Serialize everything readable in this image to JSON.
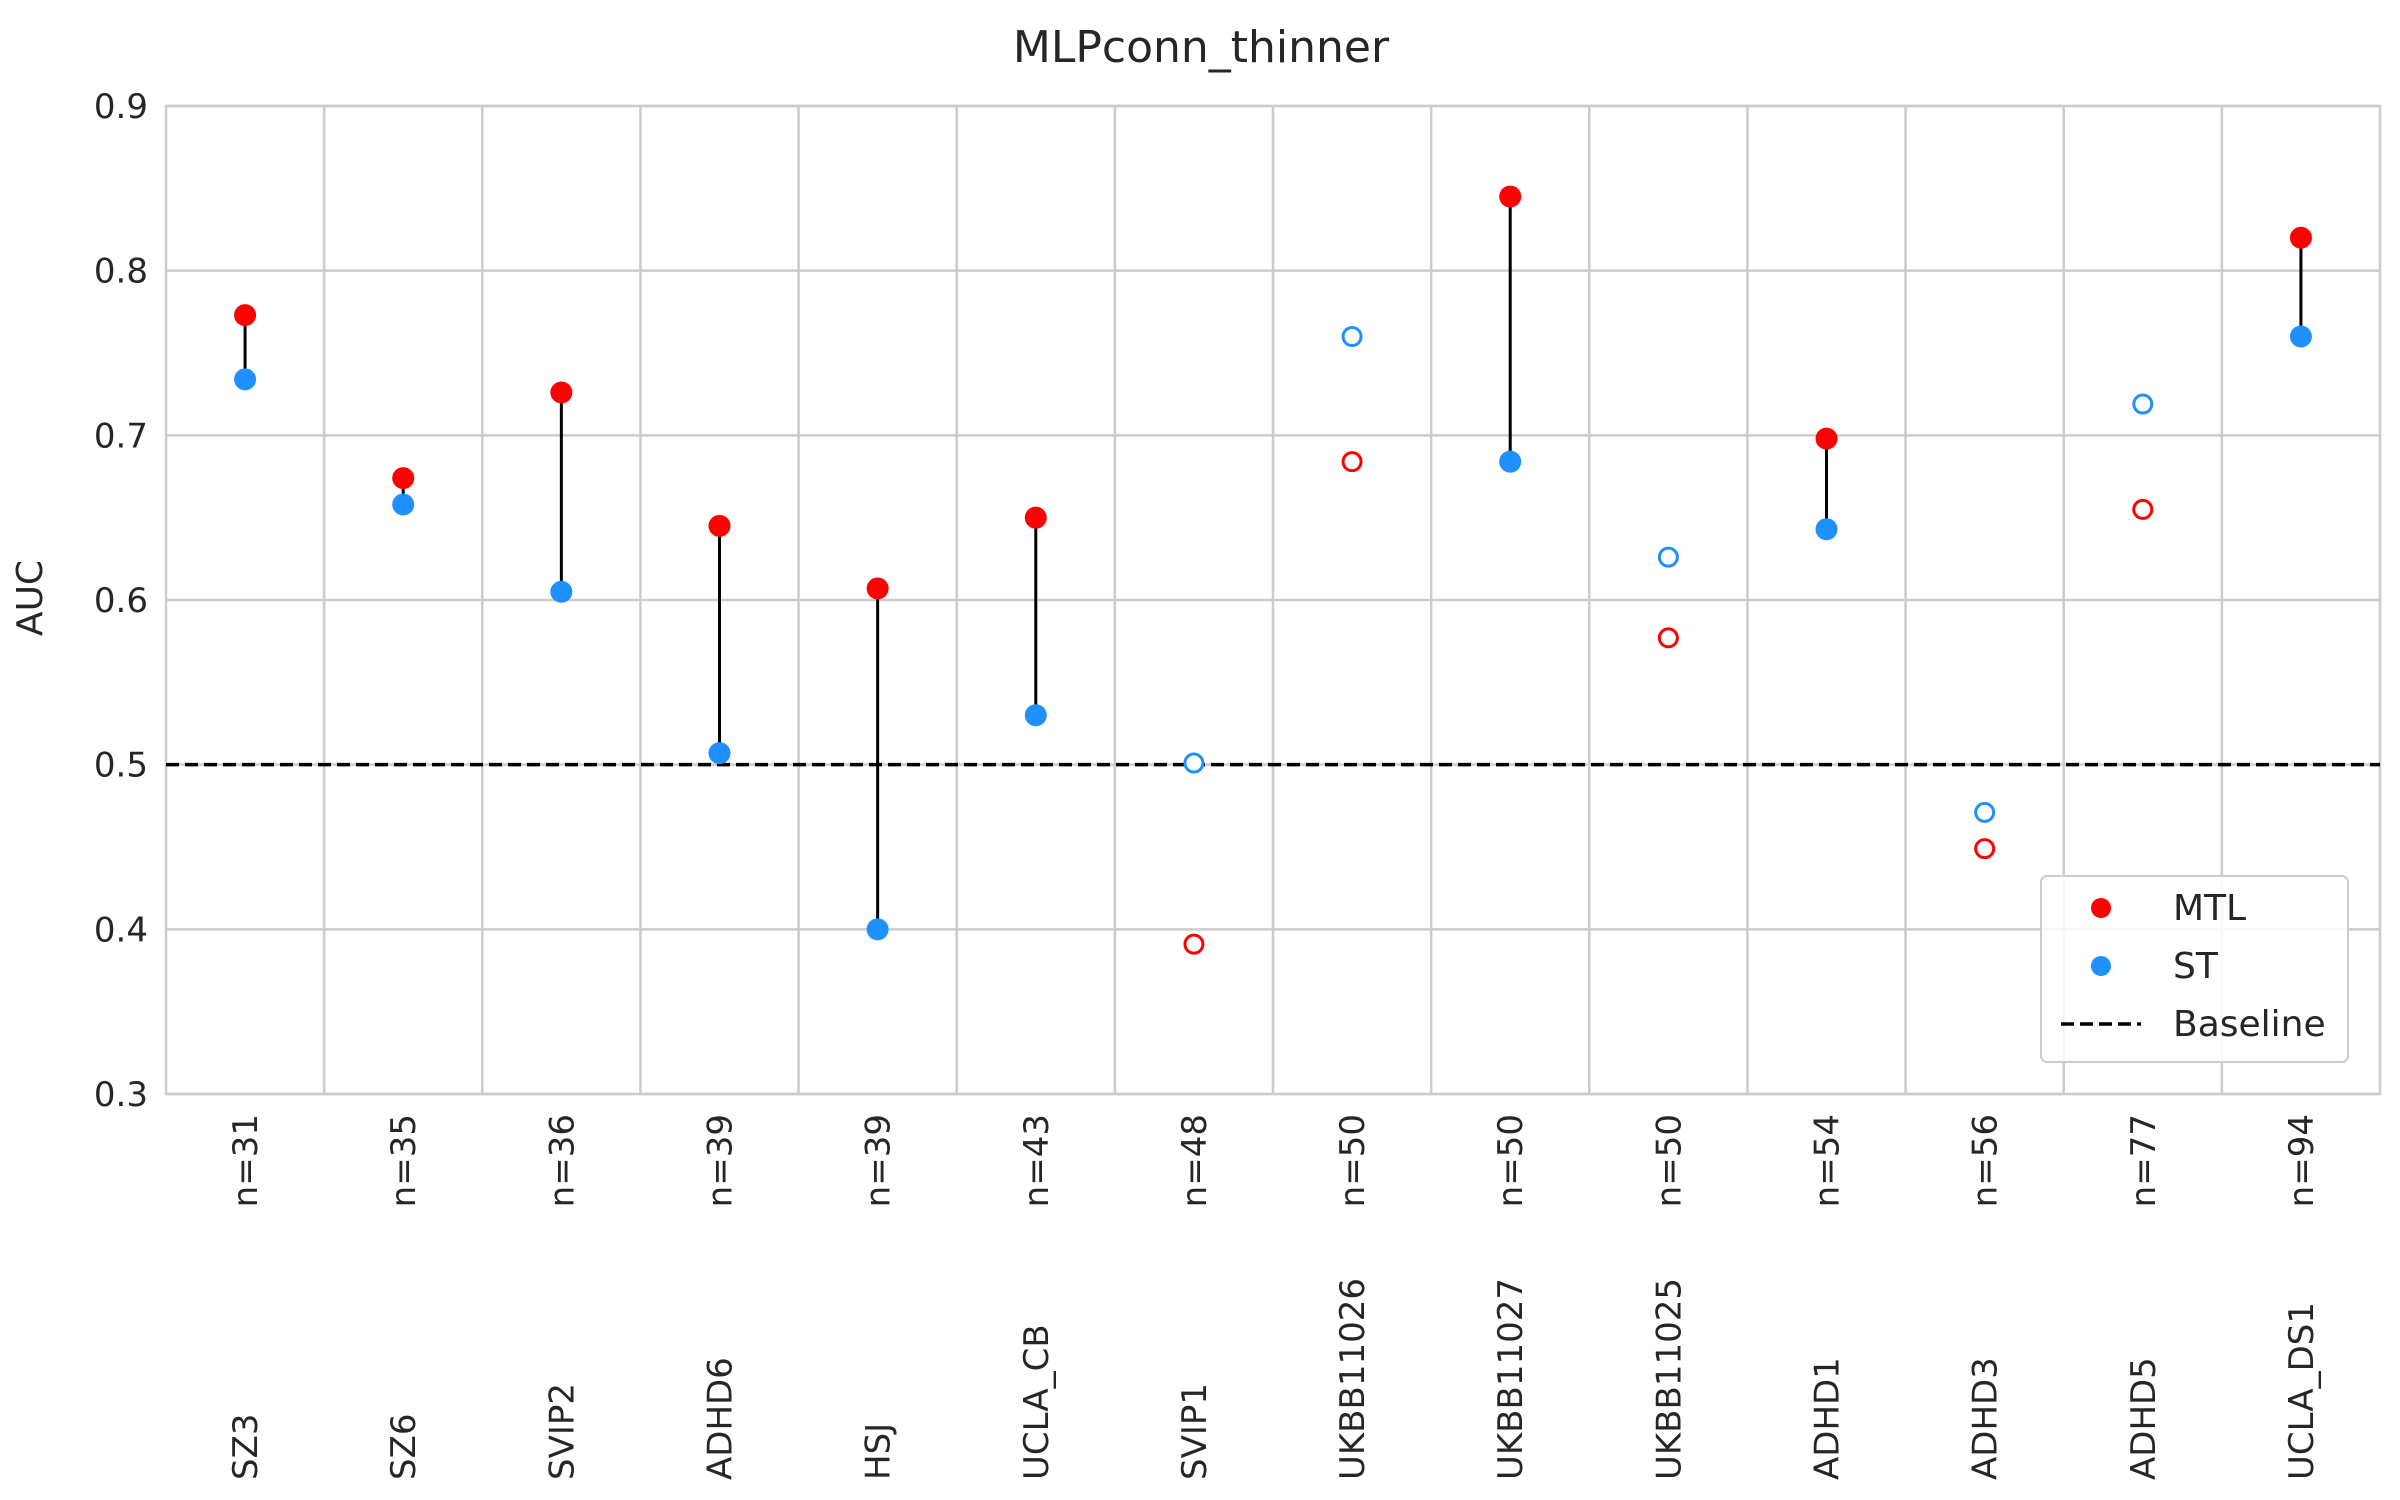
{
  "chart_data": {
    "type": "scatter",
    "title": "MLPconn_thinner",
    "xlabel": "",
    "ylabel": "AUC",
    "ylim": [
      0.3,
      0.9
    ],
    "yticks": [
      "0.3",
      "0.4",
      "0.5",
      "0.6",
      "0.7",
      "0.8",
      "0.9"
    ],
    "grid": true,
    "legend_position": "lower-right",
    "baseline": 0.5,
    "colors": {
      "MTL": "#ff0000",
      "ST": "#1e90ff",
      "Baseline": "#000000",
      "connector": "#000000"
    },
    "categories": [
      {
        "name": "SZ3",
        "n": "n=31",
        "mtl": 0.773,
        "st": 0.734,
        "filled": true
      },
      {
        "name": "SZ6",
        "n": "n=35",
        "mtl": 0.674,
        "st": 0.658,
        "filled": true
      },
      {
        "name": "SVIP2",
        "n": "n=36",
        "mtl": 0.726,
        "st": 0.605,
        "filled": true
      },
      {
        "name": "ADHD6",
        "n": "n=39",
        "mtl": 0.645,
        "st": 0.507,
        "filled": true
      },
      {
        "name": "HSJ",
        "n": "n=39",
        "mtl": 0.607,
        "st": 0.4,
        "filled": true
      },
      {
        "name": "UCLA_CB",
        "n": "n=43",
        "mtl": 0.65,
        "st": 0.53,
        "filled": true
      },
      {
        "name": "SVIP1",
        "n": "n=48",
        "mtl": 0.391,
        "st": 0.501,
        "filled": false
      },
      {
        "name": "UKBB11026",
        "n": "n=50",
        "mtl": 0.684,
        "st": 0.76,
        "filled": false
      },
      {
        "name": "UKBB11027",
        "n": "n=50",
        "mtl": 0.845,
        "st": 0.684,
        "filled": true
      },
      {
        "name": "UKBB11025",
        "n": "n=50",
        "mtl": 0.577,
        "st": 0.626,
        "filled": false
      },
      {
        "name": "ADHD1",
        "n": "n=54",
        "mtl": 0.698,
        "st": 0.643,
        "filled": true
      },
      {
        "name": "ADHD3",
        "n": "n=56",
        "mtl": 0.449,
        "st": 0.471,
        "filled": false
      },
      {
        "name": "ADHD5",
        "n": "n=77",
        "mtl": 0.655,
        "st": 0.719,
        "filled": false
      },
      {
        "name": "UCLA_DS1",
        "n": "n=94",
        "mtl": 0.82,
        "st": 0.76,
        "filled": true
      }
    ],
    "legend": [
      {
        "label": "MTL",
        "kind": "marker",
        "color_key": "MTL"
      },
      {
        "label": "ST",
        "kind": "marker",
        "color_key": "ST"
      },
      {
        "label": "Baseline",
        "kind": "dashed-line",
        "color_key": "Baseline"
      }
    ]
  }
}
